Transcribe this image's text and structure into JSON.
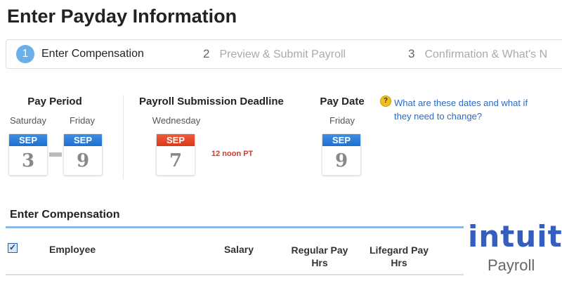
{
  "page_title": "Enter Payday Information",
  "steps": [
    {
      "num": "1",
      "label": "Enter Compensation",
      "active": true
    },
    {
      "num": "2",
      "label": "Preview & Submit Payroll"
    },
    {
      "num": "3",
      "label": "Confirmation & What's N"
    }
  ],
  "pay_period": {
    "label": "Pay Period",
    "start": {
      "weekday": "Saturday",
      "month": "SEP",
      "day": "3"
    },
    "end": {
      "weekday": "Friday",
      "month": "SEP",
      "day": "9"
    }
  },
  "deadline": {
    "label": "Payroll Submission Deadline",
    "weekday": "Wednesday",
    "month": "SEP",
    "day": "7",
    "time": "12 noon PT"
  },
  "pay_date": {
    "label": "Pay Date",
    "weekday": "Friday",
    "month": "SEP",
    "day": "9"
  },
  "help_link": "What are these dates and what if they need to change?",
  "section_title": "Enter Compensation",
  "table": {
    "columns": [
      "Employee",
      "Salary",
      "Regular Pay Hrs",
      "Lifegard Pay Hrs"
    ]
  },
  "logo": {
    "brand": "intuit.",
    "product": "Payroll",
    "color": "#365ebf"
  }
}
